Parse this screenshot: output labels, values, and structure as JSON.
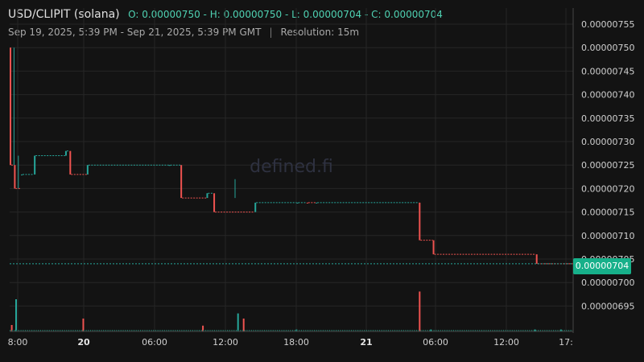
{
  "header": {
    "pair": "USD/CLIPIT (solana)",
    "o_label": "O:",
    "o": "0.00000750",
    "h_label": "H:",
    "h": "0.00000750",
    "l_label": "L:",
    "l": "0.00000704",
    "c_label": "C:",
    "c": "0.00000704",
    "range": "Sep 19, 2025, 5:39 PM - Sep 21, 2025, 5:39 PM GMT",
    "separator": "|",
    "resolution": "Resolution: 15m"
  },
  "watermark": "defined.fi",
  "last_price_label": "0.00000704",
  "colors": {
    "up": "#26a69a",
    "down": "#ef5350",
    "background": "#131313",
    "grid": "#262626",
    "badge": "#17b08a"
  },
  "chart_data": {
    "type": "candlestick",
    "title": "USD/CLIPIT (solana)",
    "resolution": "15m",
    "y_ticks": [
      "0.00000755",
      "0.00000750",
      "0.00000745",
      "0.00000740",
      "0.00000735",
      "0.00000730",
      "0.00000725",
      "0.00000720",
      "0.00000715",
      "0.00000710",
      "0.00000705",
      "0.00000700",
      "0.00000695"
    ],
    "ylim": [
      6.9e-06,
      7.57e-06
    ],
    "x_ticks": [
      {
        "label": "8:00",
        "bold": false
      },
      {
        "label": "20",
        "bold": true
      },
      {
        "label": "06:00",
        "bold": false
      },
      {
        "label": "12:00",
        "bold": false
      },
      {
        "label": "18:00",
        "bold": false
      },
      {
        "label": "21",
        "bold": true
      },
      {
        "label": "06:00",
        "bold": false
      },
      {
        "label": "12:00",
        "bold": false
      },
      {
        "label": "17:",
        "bold": false
      }
    ],
    "last_price": 7.04e-06,
    "grid": true,
    "segments": [
      {
        "t0": 0.0,
        "t1": 1.0,
        "o": 7.5e-06,
        "c": 7.25e-06,
        "dir": "down"
      },
      {
        "t0": 1.0,
        "t1": 2.6,
        "o": 7.25e-06,
        "c": 7.2e-06,
        "dir": "down"
      },
      {
        "t0": 2.6,
        "t1": 5.6,
        "o": 7.23e-06,
        "c": 7.23e-06,
        "dir": "up"
      },
      {
        "t0": 5.6,
        "t1": 12.8,
        "o": 7.23e-06,
        "c": 7.27e-06,
        "dir": "up"
      },
      {
        "t0": 12.8,
        "t1": 13.8,
        "o": 7.27e-06,
        "c": 7.28e-06,
        "dir": "up"
      },
      {
        "t0": 13.8,
        "t1": 17.8,
        "o": 7.28e-06,
        "c": 7.23e-06,
        "dir": "down"
      },
      {
        "t0": 17.8,
        "t1": 36.7,
        "o": 7.23e-06,
        "c": 7.25e-06,
        "dir": "up"
      },
      {
        "t0": 36.7,
        "t1": 39.4,
        "o": 7.25e-06,
        "c": 7.25e-06,
        "dir": "up"
      },
      {
        "t0": 39.4,
        "t1": 45.4,
        "o": 7.25e-06,
        "c": 7.18e-06,
        "dir": "down"
      },
      {
        "t0": 45.4,
        "t1": 47.0,
        "o": 7.18e-06,
        "c": 7.19e-06,
        "dir": "up"
      },
      {
        "t0": 47.0,
        "t1": 56.5,
        "o": 7.19e-06,
        "c": 7.15e-06,
        "dir": "down"
      },
      {
        "t0": 56.5,
        "t1": 66.2,
        "o": 7.15e-06,
        "c": 7.17e-06,
        "dir": "up"
      },
      {
        "t0": 66.2,
        "t1": 68.5,
        "o": 7.17e-06,
        "c": 7.17e-06,
        "dir": "up"
      },
      {
        "t0": 68.5,
        "t1": 70.6,
        "o": 7.17e-06,
        "c": 7.17e-06,
        "dir": "down"
      },
      {
        "t0": 70.6,
        "t1": 94.4,
        "o": 7.17e-06,
        "c": 7.17e-06,
        "dir": "up"
      },
      {
        "t0": 94.4,
        "t1": 97.6,
        "o": 7.17e-06,
        "c": 7.09e-06,
        "dir": "down"
      },
      {
        "t0": 97.6,
        "t1": 121.4,
        "o": 7.09e-06,
        "c": 7.06e-06,
        "dir": "down"
      },
      {
        "t0": 121.4,
        "t1": 130.0,
        "o": 7.06e-06,
        "c": 7.04e-06,
        "dir": "down"
      }
    ],
    "wicks": [
      {
        "t": 1.0,
        "hi": 7.5e-06,
        "lo": 7.25e-06
      },
      {
        "t": 2.0,
        "hi": 7.27e-06,
        "lo": 7.2e-06
      },
      {
        "t": 52.0,
        "hi": 7.22e-06,
        "lo": 7.18e-06
      }
    ],
    "volume": [
      {
        "t": 0.3,
        "v": 0.1,
        "dir": "down"
      },
      {
        "t": 1.3,
        "v": 0.5,
        "dir": "up"
      },
      {
        "t": 16.8,
        "v": 0.2,
        "dir": "down"
      },
      {
        "t": 44.4,
        "v": 0.09,
        "dir": "down"
      },
      {
        "t": 52.5,
        "v": 0.28,
        "dir": "up"
      },
      {
        "t": 53.8,
        "v": 0.2,
        "dir": "down"
      },
      {
        "t": 94.4,
        "v": 0.62,
        "dir": "down"
      },
      {
        "t": 66.0,
        "v": 0.03,
        "dir": "up"
      },
      {
        "t": 97.0,
        "v": 0.03,
        "dir": "up"
      },
      {
        "t": 121.0,
        "v": 0.03,
        "dir": "up"
      },
      {
        "t": 127.0,
        "v": 0.03,
        "dir": "up"
      }
    ]
  }
}
